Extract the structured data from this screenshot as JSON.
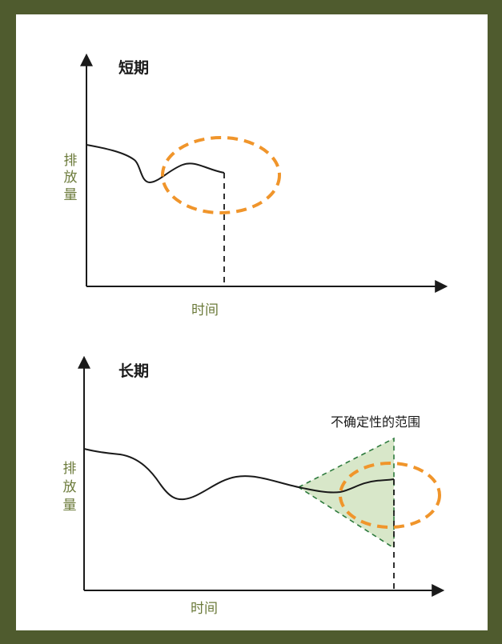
{
  "colors": {
    "frame": "#4f5b2e",
    "panel": "#ffffff",
    "axis": "#1a1a1a",
    "label_green": "#6b7a3a",
    "ellipse_orange": "#f0952b",
    "range_fill": "#d8e7c9",
    "range_stroke": "#2d7a3d"
  },
  "short_term": {
    "title": "短期",
    "y_label": [
      "排",
      "放",
      "量"
    ],
    "x_label": "时间"
  },
  "long_term": {
    "title": "长期",
    "y_label": [
      "排",
      "放",
      "量"
    ],
    "x_label": "时间",
    "uncertainty_label": "不确定性的范围"
  }
}
